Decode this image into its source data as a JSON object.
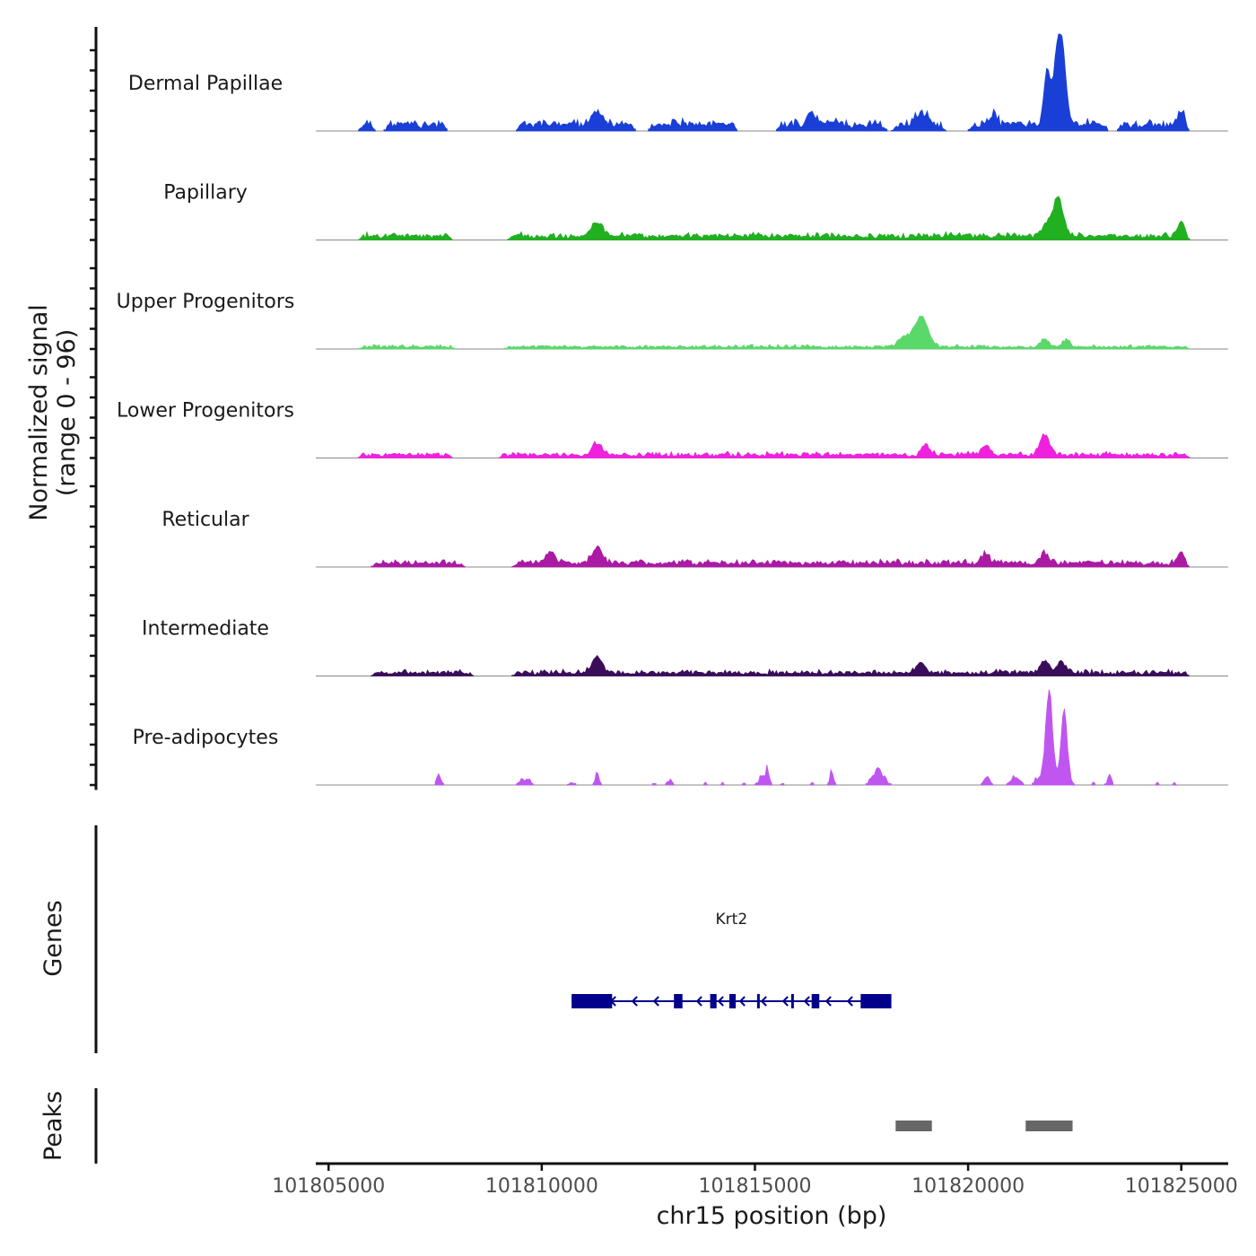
{
  "chart_data": {
    "type": "area",
    "title": "",
    "ylabel_line1": "Normalized signal",
    "ylabel_line2": "(range 0 - 96)",
    "xlabel": "chr15 position (bp)",
    "xlim": [
      101804700,
      101826100
    ],
    "ylim": [
      0,
      96
    ],
    "x_ticks": [
      {
        "value": 101805000,
        "label": "101805000"
      },
      {
        "value": 101810000,
        "label": "101810000"
      },
      {
        "value": 101815000,
        "label": "101815000"
      },
      {
        "value": 101820000,
        "label": "101820000"
      },
      {
        "value": 101825000,
        "label": "101825000"
      }
    ],
    "tracks": [
      {
        "name": "Dermal Papillae",
        "color": "#1a3fd6",
        "coverage": [
          [
            101805700,
            101806100
          ],
          [
            101806300,
            101807800
          ],
          [
            101809400,
            101812200
          ],
          [
            101812500,
            101814600
          ],
          [
            101815500,
            101818100
          ],
          [
            101818200,
            101819500
          ],
          [
            101820000,
            101823300
          ],
          [
            101823500,
            101825200
          ]
        ],
        "noise_base": 6,
        "noise_amp": 5,
        "peaks": [
          {
            "center": 101822150,
            "height": 96,
            "width": 160
          },
          {
            "center": 101821850,
            "height": 50,
            "width": 110
          },
          {
            "center": 101818900,
            "height": 12,
            "width": 200
          },
          {
            "center": 101811300,
            "height": 14,
            "width": 150
          },
          {
            "center": 101825000,
            "height": 14,
            "width": 100
          },
          {
            "center": 101816300,
            "height": 9,
            "width": 150
          },
          {
            "center": 101820600,
            "height": 12,
            "width": 100
          }
        ]
      },
      {
        "name": "Papillary",
        "color": "#20b020",
        "coverage": [
          [
            101805700,
            101807900
          ],
          [
            101809200,
            101825200
          ]
        ],
        "noise_base": 4,
        "noise_amp": 3,
        "peaks": [
          {
            "center": 101822100,
            "height": 38,
            "width": 180
          },
          {
            "center": 101811300,
            "height": 14,
            "width": 170
          },
          {
            "center": 101825000,
            "height": 14,
            "width": 120
          },
          {
            "center": 101821800,
            "height": 10,
            "width": 120
          }
        ]
      },
      {
        "name": "Upper Progenitors",
        "color": "#5ad86a",
        "coverage": [
          [
            101805700,
            101808000
          ],
          [
            101809100,
            101825200
          ]
        ],
        "noise_base": 2,
        "noise_amp": 2,
        "peaks": [
          {
            "center": 101818900,
            "height": 30,
            "width": 220
          },
          {
            "center": 101818500,
            "height": 10,
            "width": 180
          },
          {
            "center": 101822300,
            "height": 7,
            "width": 120
          },
          {
            "center": 101821800,
            "height": 8,
            "width": 120
          }
        ]
      },
      {
        "name": "Lower Progenitors",
        "color": "#ee22dd",
        "coverage": [
          [
            101805700,
            101807900
          ],
          [
            101809000,
            101825200
          ]
        ],
        "noise_base": 3,
        "noise_amp": 3,
        "peaks": [
          {
            "center": 101821800,
            "height": 20,
            "width": 160
          },
          {
            "center": 101811300,
            "height": 12,
            "width": 150
          },
          {
            "center": 101819000,
            "height": 11,
            "width": 120
          },
          {
            "center": 101820400,
            "height": 9,
            "width": 140
          }
        ]
      },
      {
        "name": "Reticular",
        "color": "#aa1aa3",
        "coverage": [
          [
            101806000,
            101808200
          ],
          [
            101809300,
            101825200
          ]
        ],
        "noise_base": 4,
        "noise_amp": 3,
        "peaks": [
          {
            "center": 101811300,
            "height": 17,
            "width": 160
          },
          {
            "center": 101810200,
            "height": 11,
            "width": 160
          },
          {
            "center": 101821800,
            "height": 10,
            "width": 140
          },
          {
            "center": 101825000,
            "height": 11,
            "width": 110
          },
          {
            "center": 101820400,
            "height": 10,
            "width": 120
          }
        ]
      },
      {
        "name": "Intermediate",
        "color": "#3a0d5a",
        "coverage": [
          [
            101806000,
            101808400
          ],
          [
            101809300,
            101825200
          ]
        ],
        "noise_base": 3,
        "noise_amp": 3,
        "peaks": [
          {
            "center": 101811300,
            "height": 15,
            "width": 160
          },
          {
            "center": 101821800,
            "height": 12,
            "width": 150
          },
          {
            "center": 101822200,
            "height": 10,
            "width": 150
          },
          {
            "center": 101818900,
            "height": 11,
            "width": 140
          }
        ]
      },
      {
        "name": "Pre-adipocytes",
        "color": "#c056f0",
        "coverage": [
          [
            101807500,
            101807700
          ],
          [
            101809400,
            101809800
          ],
          [
            101810600,
            101810800
          ],
          [
            101811200,
            101811400
          ],
          [
            101812600,
            101812700
          ],
          [
            101812900,
            101813100
          ],
          [
            101813800,
            101813900
          ],
          [
            101814200,
            101814300
          ],
          [
            101814700,
            101814800
          ],
          [
            101815000,
            101815400
          ],
          [
            101815600,
            101815700
          ],
          [
            101816300,
            101816400
          ],
          [
            101816700,
            101816900
          ],
          [
            101817600,
            101818200
          ],
          [
            101820300,
            101820600
          ],
          [
            101820900,
            101821300
          ],
          [
            101821500,
            101822500
          ],
          [
            101822900,
            101823000
          ],
          [
            101823200,
            101823400
          ],
          [
            101824400,
            101824500
          ],
          [
            101824800,
            101824900
          ]
        ],
        "noise_base": 7,
        "noise_amp": 2,
        "peaks": [
          {
            "center": 101821900,
            "height": 88,
            "width": 110
          },
          {
            "center": 101822250,
            "height": 70,
            "width": 90
          },
          {
            "center": 101821400,
            "height": 17,
            "width": 60
          },
          {
            "center": 101807550,
            "height": 16,
            "width": 60
          },
          {
            "center": 101811300,
            "height": 16,
            "width": 50
          },
          {
            "center": 101815300,
            "height": 15,
            "width": 60
          },
          {
            "center": 101816800,
            "height": 16,
            "width": 60
          },
          {
            "center": 101823350,
            "height": 15,
            "width": 60
          },
          {
            "center": 101817900,
            "height": 14,
            "width": 60
          }
        ]
      }
    ],
    "genes_label": "Genes",
    "gene": {
      "name": "Krt2",
      "strand": "-",
      "start": 101810700,
      "end": 101818200,
      "color": "#00008b",
      "exons": [
        [
          101810700,
          101811650
        ],
        [
          101813100,
          101813300
        ],
        [
          101813950,
          101814100
        ],
        [
          101814400,
          101814550
        ],
        [
          101815050,
          101815110
        ],
        [
          101815850,
          101815910
        ],
        [
          101816330,
          101816510
        ],
        [
          101817480,
          101818200
        ]
      ]
    },
    "peaks_label": "Peaks",
    "peak_regions": [
      [
        101818300,
        101819150
      ],
      [
        101821350,
        101822450
      ]
    ],
    "peak_color": "#666666"
  }
}
